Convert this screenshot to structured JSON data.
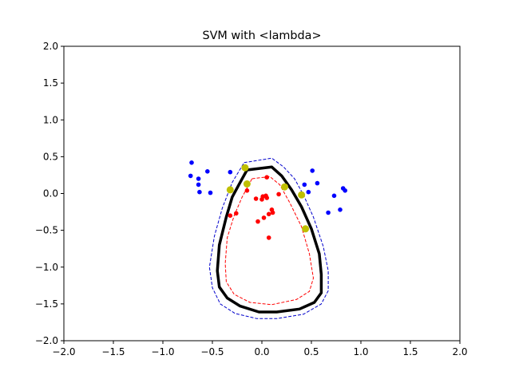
{
  "chart_data": {
    "type": "scatter",
    "title": "SVM with <lambda>",
    "xlabel": "",
    "ylabel": "",
    "xlim": [
      -2.0,
      2.0
    ],
    "ylim": [
      -2.0,
      2.0
    ],
    "grid": false,
    "x_ticks": [
      "−2.0",
      "−1.5",
      "−1.0",
      "−0.5",
      "0.0",
      "0.5",
      "1.0",
      "1.5",
      "2.0"
    ],
    "y_ticks": [
      "−2.0",
      "−1.5",
      "−1.0",
      "−0.5",
      "0.0",
      "0.5",
      "1.0",
      "1.5",
      "2.0"
    ],
    "x_tick_values": [
      -2.0,
      -1.5,
      -1.0,
      -0.5,
      0.0,
      0.5,
      1.0,
      1.5,
      2.0
    ],
    "y_tick_values": [
      -2.0,
      -1.5,
      -1.0,
      -0.5,
      0.0,
      0.5,
      1.0,
      1.5,
      2.0
    ],
    "series": [
      {
        "kind": "points",
        "color": "#0000ff",
        "points": [
          [
            -0.71,
            0.42
          ],
          [
            -0.72,
            0.24
          ],
          [
            -0.64,
            0.2
          ],
          [
            -0.64,
            0.12
          ],
          [
            -0.63,
            0.02
          ],
          [
            -0.55,
            0.3
          ],
          [
            -0.52,
            0.01
          ],
          [
            -0.32,
            0.29
          ],
          [
            0.43,
            0.12
          ],
          [
            0.47,
            0.02
          ],
          [
            0.51,
            0.31
          ],
          [
            0.56,
            0.14
          ],
          [
            0.67,
            -0.26
          ],
          [
            0.73,
            -0.03
          ],
          [
            0.79,
            -0.22
          ],
          [
            0.82,
            0.07
          ],
          [
            0.84,
            0.04
          ]
        ]
      },
      {
        "kind": "points",
        "color": "#ff0000",
        "points": [
          [
            -0.32,
            -0.3
          ],
          [
            -0.26,
            -0.27
          ],
          [
            -0.15,
            0.04
          ],
          [
            -0.06,
            -0.07
          ],
          [
            -0.04,
            -0.38
          ],
          [
            0.0,
            -0.08
          ],
          [
            0.01,
            -0.04
          ],
          [
            0.02,
            -0.33
          ],
          [
            0.04,
            -0.03
          ],
          [
            0.05,
            -0.06
          ],
          [
            0.05,
            0.22
          ],
          [
            0.07,
            -0.28
          ],
          [
            0.07,
            -0.6
          ],
          [
            0.1,
            -0.22
          ],
          [
            0.11,
            -0.26
          ],
          [
            0.17,
            -0.01
          ]
        ]
      },
      {
        "kind": "support-vectors",
        "color": "#bfbf00",
        "points": [
          [
            -0.32,
            0.05
          ],
          [
            -0.17,
            0.35
          ],
          [
            -0.15,
            0.13
          ],
          [
            0.23,
            0.09
          ],
          [
            0.4,
            -0.02
          ],
          [
            0.44,
            -0.48
          ]
        ]
      },
      {
        "kind": "contour",
        "color": "#000000",
        "style": "solid",
        "points": [
          [
            -0.15,
            0.32
          ],
          [
            0.1,
            0.36
          ],
          [
            0.2,
            0.24
          ],
          [
            0.3,
            0.05
          ],
          [
            0.4,
            -0.18
          ],
          [
            0.5,
            -0.48
          ],
          [
            0.58,
            -0.82
          ],
          [
            0.6,
            -1.1
          ],
          [
            0.6,
            -1.35
          ],
          [
            0.53,
            -1.48
          ],
          [
            0.38,
            -1.57
          ],
          [
            0.15,
            -1.61
          ],
          [
            -0.03,
            -1.61
          ],
          [
            -0.22,
            -1.53
          ],
          [
            -0.35,
            -1.42
          ],
          [
            -0.43,
            -1.27
          ],
          [
            -0.45,
            -1.05
          ],
          [
            -0.43,
            -0.7
          ],
          [
            -0.36,
            -0.32
          ],
          [
            -0.3,
            -0.05
          ],
          [
            -0.22,
            0.15
          ],
          [
            -0.15,
            0.32
          ]
        ]
      },
      {
        "kind": "contour",
        "color": "#0000cc",
        "style": "dashed",
        "points": [
          [
            -0.18,
            0.42
          ],
          [
            0.1,
            0.48
          ],
          [
            0.22,
            0.36
          ],
          [
            0.33,
            0.2
          ],
          [
            0.42,
            -0.02
          ],
          [
            0.52,
            -0.32
          ],
          [
            0.62,
            -0.72
          ],
          [
            0.67,
            -1.05
          ],
          [
            0.67,
            -1.32
          ],
          [
            0.6,
            -1.5
          ],
          [
            0.42,
            -1.64
          ],
          [
            0.15,
            -1.7
          ],
          [
            -0.05,
            -1.7
          ],
          [
            -0.27,
            -1.63
          ],
          [
            -0.42,
            -1.5
          ],
          [
            -0.5,
            -1.28
          ],
          [
            -0.53,
            -1.0
          ],
          [
            -0.48,
            -0.58
          ],
          [
            -0.4,
            -0.2
          ],
          [
            -0.3,
            0.15
          ],
          [
            -0.18,
            0.42
          ]
        ]
      },
      {
        "kind": "contour",
        "color": "#ff0000",
        "style": "dashed",
        "points": [
          [
            -0.1,
            0.2
          ],
          [
            0.08,
            0.23
          ],
          [
            0.18,
            0.12
          ],
          [
            0.28,
            -0.12
          ],
          [
            0.4,
            -0.45
          ],
          [
            0.48,
            -0.82
          ],
          [
            0.52,
            -1.15
          ],
          [
            0.48,
            -1.33
          ],
          [
            0.35,
            -1.44
          ],
          [
            0.1,
            -1.51
          ],
          [
            -0.12,
            -1.48
          ],
          [
            -0.28,
            -1.37
          ],
          [
            -0.36,
            -1.2
          ],
          [
            -0.37,
            -0.95
          ],
          [
            -0.35,
            -0.6
          ],
          [
            -0.28,
            -0.3
          ],
          [
            -0.2,
            -0.05
          ],
          [
            -0.1,
            0.2
          ]
        ]
      }
    ]
  }
}
